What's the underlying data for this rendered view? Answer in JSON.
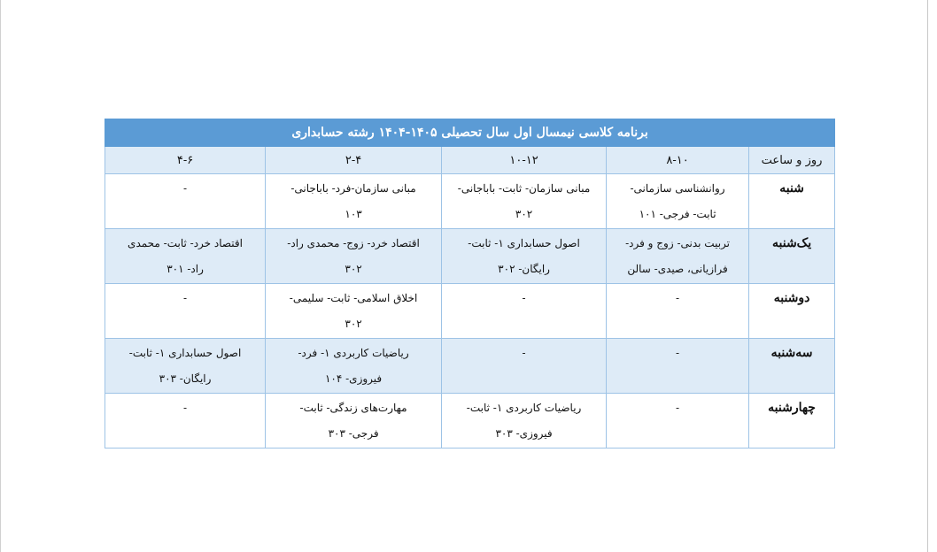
{
  "title": "برنامه کلاسی نیمسال اول سال تحصیلی ۱۴۰۵-۱۴۰۴ رشته حسابداری",
  "headers": [
    "روز و ساعت",
    "۸-۱۰",
    "۱۰-۱۲",
    "۲-۴",
    "۴-۶"
  ],
  "rows": [
    {
      "day": "شنبه",
      "cells": [
        [
          "روانشناسی سازمانی-",
          "ثابت- فرجی- ۱۰۱"
        ],
        [
          "مبانی سازمان- ثابت- باباجانی-",
          "۳۰۲"
        ],
        [
          "مبانی سازمان-فرد- باباجانی-",
          "۱۰۳"
        ],
        [
          "-"
        ]
      ]
    },
    {
      "day": "یک‌شنبه",
      "cells": [
        [
          "تربیت بدنی- زوج و فرد-",
          "فرازیانی، صیدی- سالن"
        ],
        [
          "اصول حسابداری ۱- ثابت-",
          "رایگان- ۳۰۲"
        ],
        [
          "اقتصاد خرد- زوج- محمدی راد-",
          "۳۰۲"
        ],
        [
          "اقتصاد خرد- ثابت- محمدی",
          "راد- ۳۰۱"
        ]
      ]
    },
    {
      "day": "دوشنبه",
      "cells": [
        [
          "-"
        ],
        [
          "-"
        ],
        [
          "اخلاق اسلامی- ثابت- سلیمی-",
          "۳۰۲"
        ],
        [
          "-"
        ]
      ]
    },
    {
      "day": "سه‌شنبه",
      "cells": [
        [
          "-"
        ],
        [
          "-"
        ],
        [
          "ریاضیات کاربردی ۱- فرد-",
          "فیروزی- ۱۰۴"
        ],
        [
          "اصول حسابداری ۱- ثابت-",
          "رایگان- ۳۰۳"
        ]
      ]
    },
    {
      "day": "چهارشنبه",
      "cells": [
        [
          "-"
        ],
        [
          "ریاضیات کاربردی ۱- ثابت-",
          "فیروزی- ۳۰۳"
        ],
        [
          "مهارت‌های زندگی- ثابت-",
          "فرجی- ۳۰۳"
        ],
        [
          "-"
        ]
      ]
    }
  ]
}
